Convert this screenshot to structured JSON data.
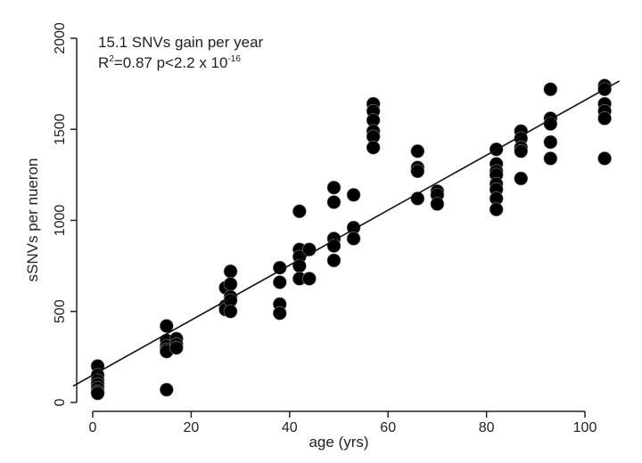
{
  "chart_data": {
    "type": "scatter",
    "title": "",
    "xlabel": "age (yrs)",
    "ylabel": "sSNVs per nueron",
    "xlim": [
      -3,
      110
    ],
    "ylim": [
      0,
      2000
    ],
    "xticks": [
      "0",
      "20",
      "40",
      "60",
      "80",
      "100"
    ],
    "xtick_values": [
      0,
      20,
      40,
      60,
      80,
      100
    ],
    "yticks": [
      "0",
      "500",
      "1000",
      "1500",
      "2000"
    ],
    "ytick_values": [
      0,
      500,
      1000,
      1500,
      2000
    ],
    "grid": false,
    "annotation": {
      "line1": "15.1 SNVs gain per year",
      "r2_prefix": "R",
      "r2_sup": "2",
      "r2_rest": "=0.87 p<2.2 x 10",
      "p_exp": "-16"
    },
    "fit": {
      "slope": 15.1,
      "intercept": 150,
      "x_range": [
        -4,
        107
      ]
    },
    "series": [
      {
        "name": "neurons",
        "color": "#000000",
        "points": [
          [
            1,
            200
          ],
          [
            1,
            150
          ],
          [
            1,
            120
          ],
          [
            1,
            100
          ],
          [
            1,
            80
          ],
          [
            1,
            60
          ],
          [
            1,
            50
          ],
          [
            15,
            420
          ],
          [
            15,
            340
          ],
          [
            15,
            310
          ],
          [
            15,
            290
          ],
          [
            15,
            280
          ],
          [
            15,
            70
          ],
          [
            17,
            350
          ],
          [
            17,
            320
          ],
          [
            17,
            300
          ],
          [
            27,
            630
          ],
          [
            27,
            530
          ],
          [
            27,
            510
          ],
          [
            28,
            720
          ],
          [
            28,
            650
          ],
          [
            28,
            580
          ],
          [
            28,
            560
          ],
          [
            28,
            500
          ],
          [
            38,
            740
          ],
          [
            38,
            660
          ],
          [
            38,
            540
          ],
          [
            38,
            490
          ],
          [
            42,
            1050
          ],
          [
            42,
            840
          ],
          [
            42,
            800
          ],
          [
            42,
            750
          ],
          [
            42,
            680
          ],
          [
            44,
            840
          ],
          [
            44,
            680
          ],
          [
            49,
            1180
          ],
          [
            49,
            1100
          ],
          [
            49,
            900
          ],
          [
            49,
            860
          ],
          [
            49,
            780
          ],
          [
            53,
            1140
          ],
          [
            53,
            960
          ],
          [
            53,
            900
          ],
          [
            57,
            1640
          ],
          [
            57,
            1600
          ],
          [
            57,
            1550
          ],
          [
            57,
            1490
          ],
          [
            57,
            1460
          ],
          [
            57,
            1400
          ],
          [
            66,
            1380
          ],
          [
            66,
            1290
          ],
          [
            66,
            1270
          ],
          [
            66,
            1120
          ],
          [
            70,
            1160
          ],
          [
            70,
            1140
          ],
          [
            70,
            1090
          ],
          [
            82,
            1390
          ],
          [
            82,
            1310
          ],
          [
            82,
            1270
          ],
          [
            82,
            1250
          ],
          [
            82,
            1200
          ],
          [
            82,
            1170
          ],
          [
            82,
            1120
          ],
          [
            82,
            1060
          ],
          [
            87,
            1490
          ],
          [
            87,
            1450
          ],
          [
            87,
            1400
          ],
          [
            87,
            1380
          ],
          [
            87,
            1230
          ],
          [
            93,
            1720
          ],
          [
            93,
            1560
          ],
          [
            93,
            1530
          ],
          [
            93,
            1430
          ],
          [
            93,
            1340
          ],
          [
            104,
            1740
          ],
          [
            104,
            1720
          ],
          [
            104,
            1640
          ],
          [
            104,
            1600
          ],
          [
            104,
            1560
          ],
          [
            104,
            1340
          ]
        ]
      }
    ]
  }
}
